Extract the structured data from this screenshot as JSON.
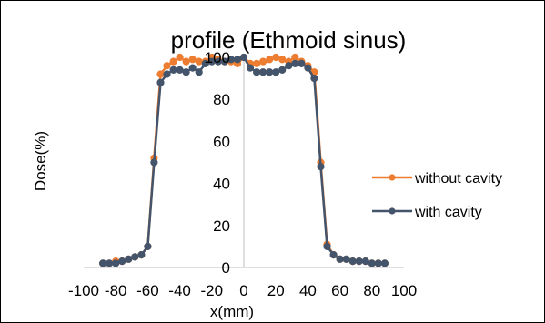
{
  "chart_data": {
    "type": "line",
    "title": "profile (Ethmoid sinus)",
    "xlabel": "x(mm)",
    "ylabel": "Dose(%)",
    "xlim": [
      -100,
      100
    ],
    "ylim": [
      0,
      100
    ],
    "xticks": [
      -100,
      -80,
      -60,
      -40,
      -20,
      0,
      20,
      40,
      60,
      80,
      100
    ],
    "yticks": [
      0,
      20,
      40,
      60,
      80,
      100
    ],
    "grid": false,
    "legend_position": "right",
    "series": [
      {
        "name": "without cavity",
        "color": "#ED7D31",
        "x": [
          -88,
          -84,
          -80,
          -76,
          -72,
          -68,
          -64,
          -60,
          -56,
          -52,
          -48,
          -44,
          -40,
          -36,
          -32,
          -28,
          -24,
          -20,
          -16,
          -12,
          -8,
          -4,
          0,
          4,
          8,
          12,
          16,
          20,
          24,
          28,
          32,
          36,
          40,
          44,
          48,
          52,
          56,
          60,
          64,
          68,
          72,
          76,
          80,
          84,
          88
        ],
        "values": [
          2,
          2,
          3,
          3,
          4,
          5,
          6,
          10,
          52,
          92,
          96,
          98,
          100,
          98,
          99,
          98,
          98,
          100,
          99,
          98,
          98,
          97,
          100,
          97,
          97,
          98,
          99,
          100,
          99,
          98,
          100,
          98,
          96,
          93,
          50,
          11,
          6,
          4,
          4,
          3,
          3,
          3,
          2,
          2,
          2
        ]
      },
      {
        "name": "with cavity",
        "color": "#44546A",
        "x": [
          -88,
          -84,
          -80,
          -76,
          -72,
          -68,
          -64,
          -60,
          -56,
          -52,
          -48,
          -44,
          -40,
          -36,
          -32,
          -28,
          -24,
          -20,
          -16,
          -12,
          -8,
          -4,
          0,
          4,
          8,
          12,
          16,
          20,
          24,
          28,
          32,
          36,
          40,
          44,
          48,
          52,
          56,
          60,
          64,
          68,
          72,
          76,
          80,
          84,
          88
        ],
        "values": [
          2,
          2,
          2,
          3,
          4,
          5,
          6,
          10,
          50,
          88,
          92,
          94,
          94,
          93,
          95,
          93,
          97,
          98,
          98,
          98,
          99,
          99,
          100,
          95,
          93,
          93,
          93,
          93,
          94,
          96,
          97,
          97,
          95,
          90,
          48,
          10,
          6,
          4,
          4,
          3,
          3,
          3,
          2,
          2,
          2
        ]
      }
    ]
  }
}
